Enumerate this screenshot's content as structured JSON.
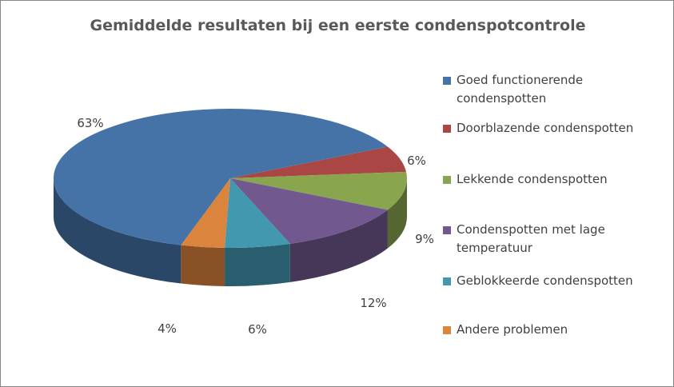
{
  "chart_data": {
    "type": "pie",
    "title": "Gemiddelde resultaten bij een eerste condenspotcontrole",
    "style": "3d",
    "legend_position": "right",
    "categories": [
      "Goed functionerende condenspotten",
      "Doorblazende condenspotten",
      "Lekkende condenspotten",
      "Condenspotten met lage temperatuur",
      "Geblokkeerde condenspotten",
      "Andere problemen"
    ],
    "values": [
      63,
      6,
      9,
      12,
      6,
      4
    ],
    "data_labels": [
      "63%",
      "6%",
      "9%",
      "12%",
      "6%",
      "4%"
    ],
    "colors": [
      "#4572A7",
      "#AA4643",
      "#89A54E",
      "#71588F",
      "#4198AF",
      "#DB843D"
    ]
  }
}
